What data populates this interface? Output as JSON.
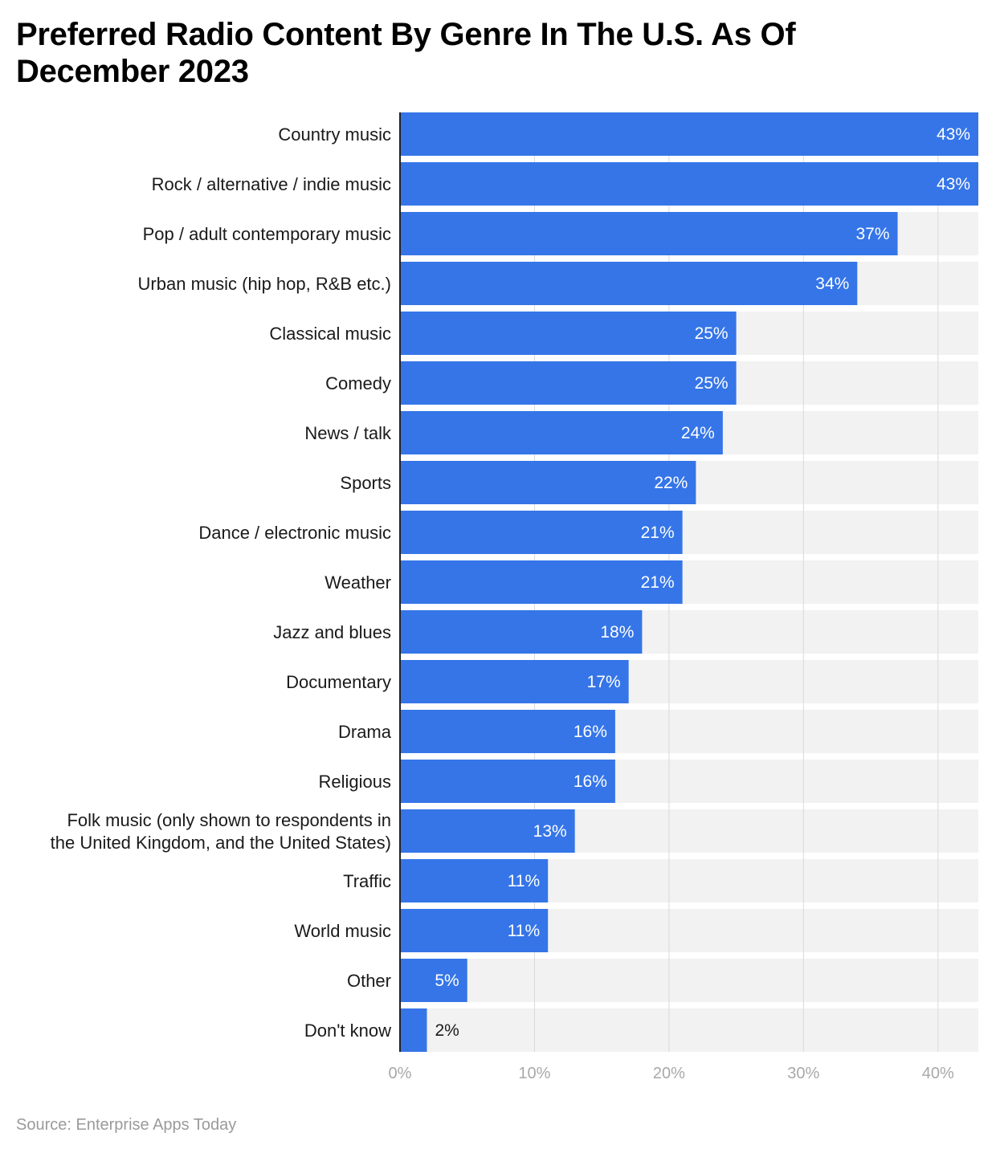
{
  "chart_data": {
    "type": "bar",
    "orientation": "horizontal",
    "title": "Preferred Radio Content By Genre In The U.S. As Of December 2023",
    "source": "Source: Enterprise Apps Today",
    "categories": [
      "Country music",
      "Rock / alternative / indie music",
      "Pop / adult contemporary music",
      "Urban music (hip hop, R&B etc.)",
      "Classical music",
      "Comedy",
      "News / talk",
      "Sports",
      "Dance / electronic music",
      "Weather",
      "Jazz and blues",
      "Documentary",
      "Drama",
      "Religious",
      "Folk music (only shown to respondents in the United Kingdom, and the United States)",
      "Traffic",
      "World music",
      "Other",
      "Don't know"
    ],
    "label_lines": [
      [
        "Country music"
      ],
      [
        "Rock / alternative / indie music"
      ],
      [
        "Pop / adult contemporary music"
      ],
      [
        "Urban music (hip hop, R&B etc.)"
      ],
      [
        "Classical music"
      ],
      [
        "Comedy"
      ],
      [
        "News / talk"
      ],
      [
        "Sports"
      ],
      [
        "Dance / electronic music"
      ],
      [
        "Weather"
      ],
      [
        "Jazz and blues"
      ],
      [
        "Documentary"
      ],
      [
        "Drama"
      ],
      [
        "Religious"
      ],
      [
        "Folk music (only shown to respondents in",
        "the United Kingdom, and the United States)"
      ],
      [
        "Traffic"
      ],
      [
        "World music"
      ],
      [
        "Other"
      ],
      [
        "Don't know"
      ]
    ],
    "values": [
      43,
      43,
      37,
      34,
      25,
      25,
      24,
      22,
      21,
      21,
      18,
      17,
      16,
      16,
      13,
      11,
      11,
      5,
      2
    ],
    "value_labels": [
      "43%",
      "43%",
      "37%",
      "34%",
      "25%",
      "25%",
      "24%",
      "22%",
      "21%",
      "21%",
      "18%",
      "17%",
      "16%",
      "16%",
      "13%",
      "11%",
      "11%",
      "5%",
      "2%"
    ],
    "x_ticks": [
      0,
      10,
      20,
      30,
      40
    ],
    "x_tick_labels": [
      "0%",
      "10%",
      "20%",
      "30%",
      "40%"
    ],
    "xlim": [
      0,
      43
    ],
    "xlabel": "",
    "ylabel": "",
    "grid": true,
    "colors": {
      "bar": "#3575e8",
      "track": "#f2f2f2",
      "grid": "#d9d9d9",
      "axis": "#222222",
      "value_inside": "#ffffff",
      "value_outside": "#1a1a1a"
    }
  }
}
